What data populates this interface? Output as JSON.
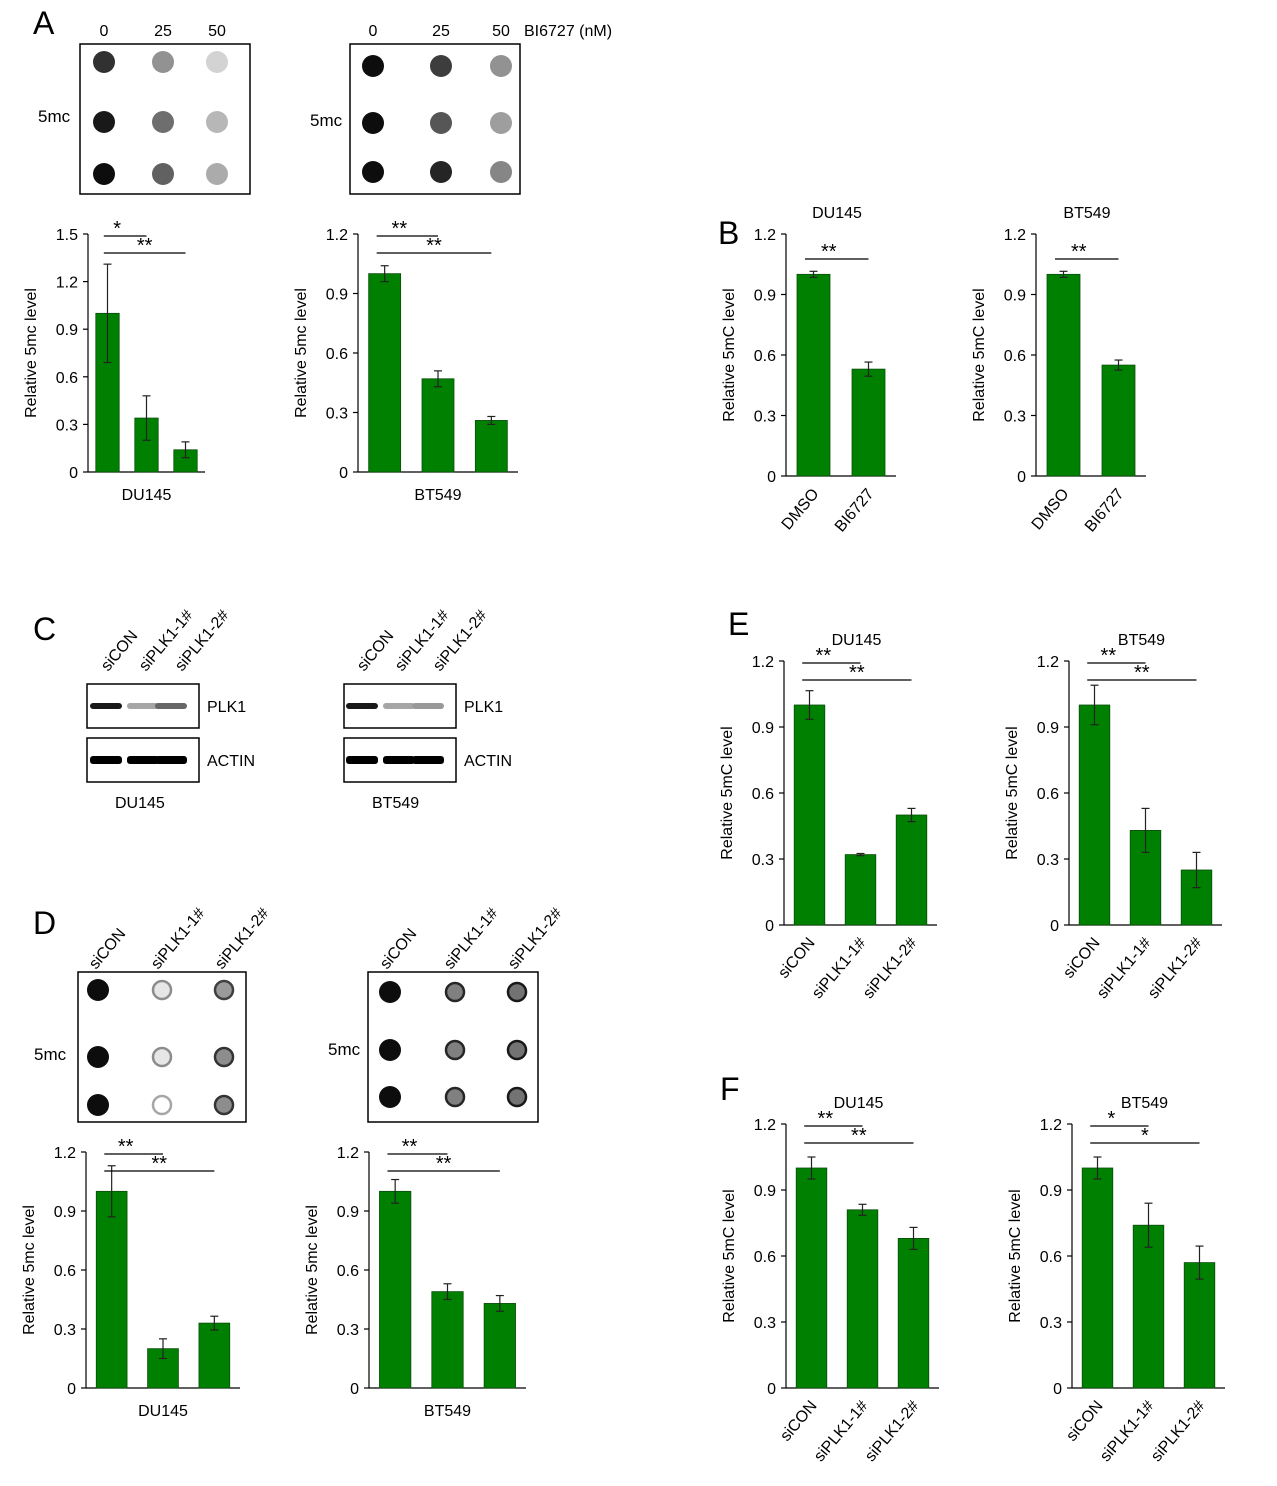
{
  "panels": {
    "A": {
      "letter": "A",
      "lane_labels": [
        "0",
        "25",
        "50"
      ],
      "treatment_label": "BI6727 (nM)",
      "blot_label": "5mc",
      "blots": [
        {
          "dots": [
            [
              0.85,
              0.45,
              0.18
            ],
            [
              0.95,
              0.6,
              0.3
            ],
            [
              1.0,
              0.65,
              0.35
            ]
          ]
        },
        {
          "dots": [
            [
              1.0,
              0.8,
              0.45
            ],
            [
              1.0,
              0.7,
              0.4
            ],
            [
              1.0,
              0.9,
              0.5
            ]
          ]
        }
      ]
    },
    "C": {
      "letter": "C",
      "lane_labels": [
        "siCON",
        "siPLK1-1#",
        "siPLK1-2#"
      ],
      "blots": [
        {
          "cell_line": "DU145",
          "bands": [
            {
              "label": "PLK1",
              "intensity": [
                0.9,
                0.35,
                0.6
              ]
            },
            {
              "label": "ACTIN",
              "intensity": [
                1.0,
                1.0,
                1.0
              ]
            }
          ]
        },
        {
          "cell_line": "BT549",
          "bands": [
            {
              "label": "PLK1",
              "intensity": [
                0.9,
                0.35,
                0.4
              ]
            },
            {
              "label": "ACTIN",
              "intensity": [
                1.0,
                1.0,
                1.0
              ]
            }
          ]
        }
      ]
    },
    "D": {
      "letter": "D",
      "lane_labels": [
        "siCON",
        "siPLK1-1#",
        "siPLK1-2#"
      ],
      "blot_label": "5mc",
      "blots": [
        {
          "dots": [
            [
              1.0,
              0.45,
              0.75
            ],
            [
              1.0,
              0.45,
              0.8
            ],
            [
              1.0,
              0.35,
              0.8
            ]
          ]
        },
        {
          "dots": [
            [
              1.0,
              0.85,
              0.9
            ],
            [
              1.0,
              0.85,
              0.9
            ],
            [
              1.0,
              0.85,
              0.9
            ]
          ]
        }
      ]
    },
    "B": {
      "letter": "B"
    },
    "E": {
      "letter": "E"
    },
    "F": {
      "letter": "F"
    }
  },
  "chart_data": [
    {
      "id": "A1",
      "type": "bar",
      "title": "",
      "xlabel": "DU145",
      "ylabel": "Relative 5mc level",
      "ylim": [
        0,
        1.5
      ],
      "yticks": [
        "0",
        "0.3",
        "0.6",
        "0.9",
        "1.2",
        "1.5"
      ],
      "categories": [
        "0",
        "25",
        "50"
      ],
      "show_category_labels": false,
      "values": [
        1.0,
        0.34,
        0.14
      ],
      "errors": [
        0.31,
        0.14,
        0.05
      ],
      "color": "#008000",
      "sig": [
        {
          "from": 0,
          "to": 1,
          "label": "*"
        },
        {
          "from": 0,
          "to": 2,
          "label": "**"
        }
      ]
    },
    {
      "id": "A2",
      "type": "bar",
      "title": "",
      "xlabel": "BT549",
      "ylabel": "Relative 5mc level",
      "ylim": [
        0,
        1.2
      ],
      "yticks": [
        "0",
        "0.3",
        "0.6",
        "0.9",
        "1.2"
      ],
      "categories": [
        "0",
        "25",
        "50"
      ],
      "show_category_labels": false,
      "values": [
        1.0,
        0.47,
        0.26
      ],
      "errors": [
        0.04,
        0.04,
        0.02
      ],
      "color": "#008000",
      "sig": [
        {
          "from": 0,
          "to": 1,
          "label": "**"
        },
        {
          "from": 0,
          "to": 2,
          "label": "**"
        }
      ]
    },
    {
      "id": "B1",
      "type": "bar",
      "title": "DU145",
      "xlabel": "",
      "ylabel": "Relative 5mC level",
      "ylim": [
        0,
        1.2
      ],
      "yticks": [
        "0",
        "0.3",
        "0.6",
        "0.9",
        "1.2"
      ],
      "categories": [
        "DMSO",
        "BI6727"
      ],
      "show_category_labels": true,
      "values": [
        1.0,
        0.53
      ],
      "errors": [
        0.015,
        0.035
      ],
      "color": "#008000",
      "sig": [
        {
          "from": 0,
          "to": 1,
          "label": "**"
        }
      ]
    },
    {
      "id": "B2",
      "type": "bar",
      "title": "BT549",
      "xlabel": "",
      "ylabel": "Relative 5mC level",
      "ylim": [
        0,
        1.2
      ],
      "yticks": [
        "0",
        "0.3",
        "0.6",
        "0.9",
        "1.2"
      ],
      "categories": [
        "DMSO",
        "BI6727"
      ],
      "show_category_labels": true,
      "values": [
        1.0,
        0.55
      ],
      "errors": [
        0.015,
        0.025
      ],
      "color": "#008000",
      "sig": [
        {
          "from": 0,
          "to": 1,
          "label": "**"
        }
      ]
    },
    {
      "id": "D1",
      "type": "bar",
      "title": "",
      "xlabel": "DU145",
      "ylabel": "Relative 5mc level",
      "ylim": [
        0,
        1.2
      ],
      "yticks": [
        "0",
        "0.3",
        "0.6",
        "0.9",
        "1.2"
      ],
      "categories": [
        "siCON",
        "siPLK1-1#",
        "siPLK1-2#"
      ],
      "show_category_labels": false,
      "values": [
        1.0,
        0.2,
        0.33
      ],
      "errors": [
        0.13,
        0.05,
        0.035
      ],
      "color": "#008000",
      "sig": [
        {
          "from": 0,
          "to": 1,
          "label": "**"
        },
        {
          "from": 0,
          "to": 2,
          "label": "**"
        }
      ]
    },
    {
      "id": "D2",
      "type": "bar",
      "title": "",
      "xlabel": "BT549",
      "ylabel": "Relative 5mc level",
      "ylim": [
        0,
        1.2
      ],
      "yticks": [
        "0",
        "0.3",
        "0.6",
        "0.9",
        "1.2"
      ],
      "categories": [
        "siCON",
        "siPLK1-1#",
        "siPLK1-2#"
      ],
      "show_category_labels": false,
      "values": [
        1.0,
        0.49,
        0.43
      ],
      "errors": [
        0.06,
        0.04,
        0.04
      ],
      "color": "#008000",
      "sig": [
        {
          "from": 0,
          "to": 1,
          "label": "**"
        },
        {
          "from": 0,
          "to": 2,
          "label": "**"
        }
      ]
    },
    {
      "id": "E1",
      "type": "bar",
      "title": "DU145",
      "xlabel": "",
      "ylabel": "Relative 5mC level",
      "ylim": [
        0,
        1.2
      ],
      "yticks": [
        "0",
        "0.3",
        "0.6",
        "0.9",
        "1.2"
      ],
      "categories": [
        "siCON",
        "siPLK1-1#",
        "siPLK1-2#"
      ],
      "show_category_labels": true,
      "values": [
        1.0,
        0.32,
        0.5
      ],
      "errors": [
        0.065,
        0.005,
        0.03
      ],
      "color": "#008000",
      "sig": [
        {
          "from": 0,
          "to": 1,
          "label": "**"
        },
        {
          "from": 0,
          "to": 2,
          "label": "**"
        }
      ]
    },
    {
      "id": "E2",
      "type": "bar",
      "title": "BT549",
      "xlabel": "",
      "ylabel": "Relative 5mC level",
      "ylim": [
        0,
        1.2
      ],
      "yticks": [
        "0",
        "0.3",
        "0.6",
        "0.9",
        "1.2"
      ],
      "categories": [
        "siCON",
        "siPLK1-1#",
        "siPLK1-2#"
      ],
      "show_category_labels": true,
      "values": [
        1.0,
        0.43,
        0.25
      ],
      "errors": [
        0.09,
        0.1,
        0.08
      ],
      "color": "#008000",
      "sig": [
        {
          "from": 0,
          "to": 1,
          "label": "**"
        },
        {
          "from": 0,
          "to": 2,
          "label": "**"
        }
      ]
    },
    {
      "id": "F1",
      "type": "bar",
      "title": "DU145",
      "xlabel": "",
      "ylabel": "Relative 5mC level",
      "ylim": [
        0,
        1.2
      ],
      "yticks": [
        "0",
        "0.3",
        "0.6",
        "0.9",
        "1.2"
      ],
      "categories": [
        "siCON",
        "siPLK1-1#",
        "siPLK1-2#"
      ],
      "show_category_labels": true,
      "values": [
        1.0,
        0.81,
        0.68
      ],
      "errors": [
        0.05,
        0.025,
        0.05
      ],
      "color": "#008000",
      "sig": [
        {
          "from": 0,
          "to": 1,
          "label": "**"
        },
        {
          "from": 0,
          "to": 2,
          "label": "**"
        }
      ]
    },
    {
      "id": "F2",
      "type": "bar",
      "title": "BT549",
      "xlabel": "",
      "ylabel": "Relative 5mC level",
      "ylim": [
        0,
        1.2
      ],
      "yticks": [
        "0",
        "0.3",
        "0.6",
        "0.9",
        "1.2"
      ],
      "categories": [
        "siCON",
        "siPLK1-1#",
        "siPLK1-2#"
      ],
      "show_category_labels": true,
      "values": [
        1.0,
        0.74,
        0.57
      ],
      "errors": [
        0.05,
        0.1,
        0.075
      ],
      "color": "#008000",
      "sig": [
        {
          "from": 0,
          "to": 1,
          "label": "*"
        },
        {
          "from": 0,
          "to": 2,
          "label": "*"
        }
      ]
    }
  ]
}
